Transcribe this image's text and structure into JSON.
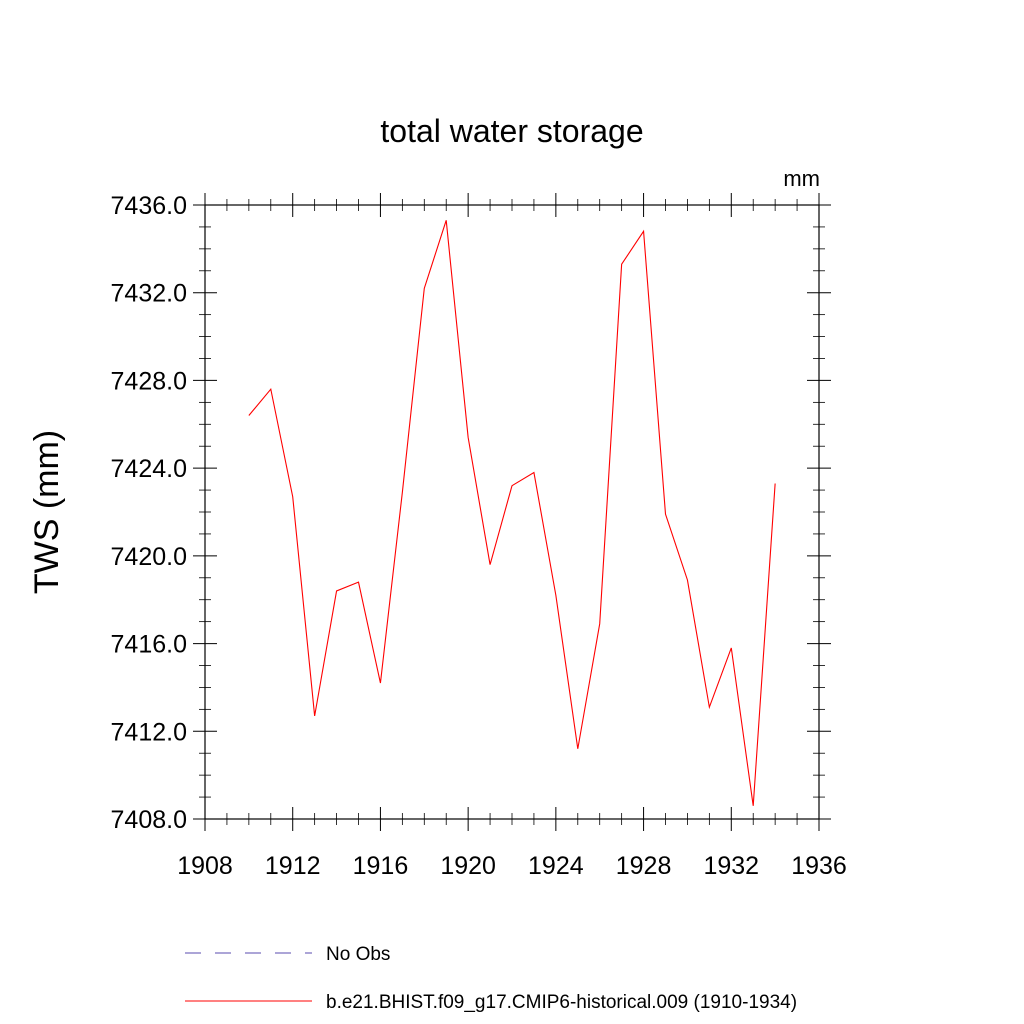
{
  "chart_data": {
    "type": "line",
    "title": "total water storage",
    "units_label": "mm",
    "ylabel": "TWS  (mm)",
    "xlabel": "",
    "xlim": [
      1908,
      1936
    ],
    "ylim": [
      7408,
      7436
    ],
    "xticks": [
      1908,
      1912,
      1916,
      1920,
      1924,
      1928,
      1932,
      1936
    ],
    "yticks": [
      7408,
      7412,
      7416,
      7420,
      7424,
      7428,
      7432,
      7436
    ],
    "ytick_labels": [
      "7408.0",
      "7412.0",
      "7416.0",
      "7420.0",
      "7424.0",
      "7428.0",
      "7432.0",
      "7436.0"
    ],
    "xtick_labels": [
      "1908",
      "1912",
      "1916",
      "1920",
      "1924",
      "1928",
      "1932",
      "1936"
    ],
    "grid": false,
    "legend_placement": "bottom",
    "series": [
      {
        "name": "b.e21.BHIST.f09_g17.CMIP6-historical.009 (1910-1934)",
        "color": "#ff0000",
        "style": "solid",
        "x": [
          1910,
          1911,
          1912,
          1913,
          1914,
          1915,
          1916,
          1917,
          1918,
          1919,
          1920,
          1921,
          1922,
          1923,
          1924,
          1925,
          1926,
          1927,
          1928,
          1929,
          1930,
          1931,
          1932,
          1933,
          1934
        ],
        "y": [
          7426.4,
          7427.6,
          7422.7,
          7412.7,
          7418.4,
          7418.8,
          7414.2,
          7422.9,
          7432.2,
          7435.3,
          7425.4,
          7419.6,
          7423.2,
          7423.8,
          7418.2,
          7411.2,
          7416.9,
          7433.3,
          7434.8,
          7421.9,
          7418.9,
          7413.1,
          7415.8,
          7408.6,
          7423.3
        ]
      }
    ],
    "legend": [
      {
        "label": "No Obs",
        "color": "#7b6fbf",
        "style": "dashed"
      },
      {
        "label": "b.e21.BHIST.f09_g17.CMIP6-historical.009 (1910-1934)",
        "color": "#ff0000",
        "style": "solid"
      }
    ]
  }
}
